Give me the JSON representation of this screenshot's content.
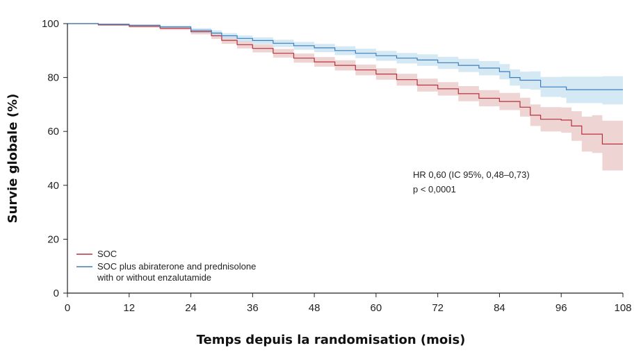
{
  "chart_data": {
    "type": "line",
    "title": "",
    "xlabel": "Temps depuis la randomisation (mois)",
    "ylabel": "Survie globale (%)",
    "xlim": [
      0,
      108
    ],
    "ylim": [
      0,
      100
    ],
    "xticks": [
      0,
      12,
      24,
      36,
      48,
      60,
      72,
      84,
      96,
      108
    ],
    "yticks": [
      0,
      20,
      40,
      60,
      80,
      100
    ],
    "grid": false,
    "legend_position": "bottom-left",
    "annotations": [
      "HR 0,60 (IC 95%, 0,48–0,73)",
      "p < 0,0001"
    ],
    "series": [
      {
        "name": "SOC",
        "color": "#b5313d",
        "band_color": "#e9c6c6",
        "x": [
          0,
          6,
          12,
          18,
          24,
          28,
          30,
          33,
          36,
          40,
          44,
          48,
          52,
          56,
          60,
          64,
          68,
          72,
          76,
          80,
          84,
          88,
          90,
          92,
          96,
          98,
          100,
          102,
          104,
          108
        ],
        "y": [
          100,
          99.5,
          99.0,
          98.3,
          97.0,
          95.5,
          93.8,
          92.2,
          90.8,
          89.0,
          87.2,
          85.8,
          84.5,
          82.8,
          81.3,
          79.2,
          77.2,
          75.8,
          74.0,
          72.3,
          71.1,
          69.0,
          66.0,
          64.5,
          64.2,
          62.0,
          59.0,
          59.0,
          55.3,
          55.3
        ],
        "lower": [
          100,
          99.3,
          98.5,
          97.6,
          96.0,
          94.3,
          92.5,
          90.8,
          89.3,
          87.4,
          85.5,
          84.0,
          82.6,
          80.8,
          79.2,
          77.0,
          74.8,
          73.3,
          71.2,
          69.3,
          67.9,
          65.5,
          62.0,
          60.0,
          59.5,
          56.5,
          52.5,
          52.0,
          45.5,
          45.5
        ],
        "upper": [
          100,
          99.7,
          99.4,
          99.0,
          98.0,
          96.7,
          95.1,
          93.6,
          92.3,
          90.6,
          88.9,
          87.6,
          86.4,
          84.8,
          83.4,
          81.4,
          79.6,
          78.3,
          76.8,
          75.3,
          74.3,
          72.5,
          70.0,
          69.0,
          68.9,
          67.5,
          65.5,
          66.0,
          64.0,
          64.0
        ]
      },
      {
        "name": "SOC plus abiraterone and prednisolone with or without enzalutamide",
        "color": "#3a7ebd",
        "band_color": "#c7e1f0",
        "x": [
          0,
          6,
          12,
          18,
          24,
          28,
          30,
          33,
          36,
          40,
          44,
          48,
          52,
          56,
          60,
          64,
          68,
          72,
          76,
          80,
          84,
          86,
          88,
          90,
          92,
          96,
          97,
          100,
          104,
          108
        ],
        "y": [
          100,
          99.8,
          99.4,
          98.8,
          97.5,
          96.5,
          95.5,
          94.5,
          93.7,
          92.7,
          91.8,
          91.0,
          90.0,
          89.0,
          88.1,
          87.2,
          86.5,
          85.5,
          84.5,
          83.5,
          82.2,
          80.0,
          79.0,
          79.0,
          76.5,
          76.5,
          75.5,
          75.5,
          75.5,
          75.5
        ],
        "lower": [
          100,
          99.6,
          99.0,
          98.2,
          96.6,
          95.5,
          94.4,
          93.3,
          92.4,
          91.3,
          90.3,
          89.4,
          88.3,
          87.2,
          86.2,
          85.2,
          84.3,
          83.2,
          82.0,
          80.8,
          79.3,
          77.0,
          75.8,
          75.5,
          72.8,
          72.5,
          70.5,
          70.5,
          70.0,
          70.0
        ],
        "upper": [
          100,
          99.9,
          99.7,
          99.3,
          98.3,
          97.5,
          96.5,
          95.6,
          94.9,
          94.0,
          93.2,
          92.5,
          91.6,
          90.7,
          89.9,
          89.1,
          88.6,
          87.7,
          86.9,
          86.1,
          85.0,
          83.0,
          82.2,
          82.3,
          80.2,
          80.3,
          80.3,
          80.3,
          80.5,
          80.5
        ]
      }
    ]
  }
}
